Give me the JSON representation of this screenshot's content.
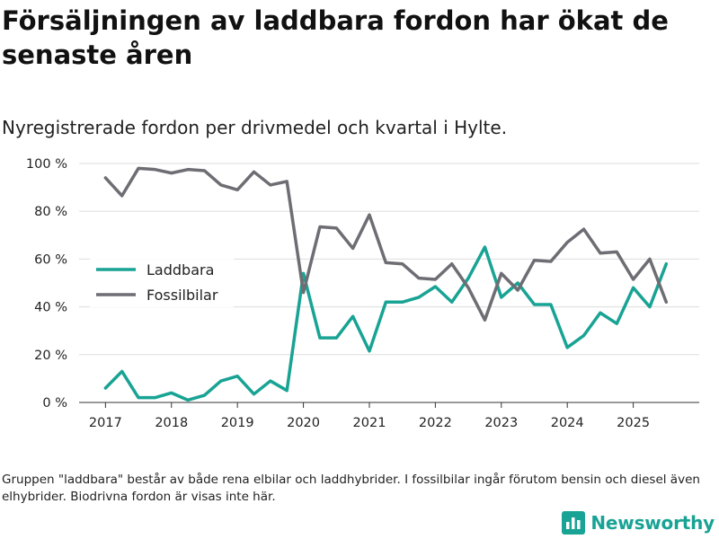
{
  "title": "Försäljningen av laddbara fordon har ökat de senaste åren",
  "subtitle": "Nyregistrerade fordon per drivmedel och kvartal i Hylte.",
  "footnote": "Gruppen \"laddbara\" består av både rena elbilar och laddhybrider. I fossilbilar ingår förutom bensin och diesel även elhybrider. Biodrivna fordon är visas inte här.",
  "brand": {
    "name": "Newsworthy",
    "icon": "newsworthy-logo-icon",
    "color": "#18A394"
  },
  "chart_data": {
    "type": "line",
    "title": "",
    "xlabel": "",
    "ylabel": "",
    "xlim": [
      2016.6,
      2026.0
    ],
    "ylim": [
      0,
      100
    ],
    "grid": true,
    "legend_position": "center-left",
    "x_ticks": [
      2017,
      2018,
      2019,
      2020,
      2021,
      2022,
      2023,
      2024,
      2025
    ],
    "x_tick_labels": [
      "2017",
      "2018",
      "2019",
      "2020",
      "2021",
      "2022",
      "2023",
      "2024",
      "2025"
    ],
    "y_ticks": [
      0,
      20,
      40,
      60,
      80,
      100
    ],
    "y_tick_labels": [
      "0 %",
      "20 %",
      "40 %",
      "60 %",
      "80 %",
      "100 %"
    ],
    "x": [
      2017.0,
      2017.25,
      2017.5,
      2017.75,
      2018.0,
      2018.25,
      2018.5,
      2018.75,
      2019.0,
      2019.25,
      2019.5,
      2019.75,
      2020.0,
      2020.25,
      2020.5,
      2020.75,
      2021.0,
      2021.25,
      2021.5,
      2021.75,
      2022.0,
      2022.25,
      2022.5,
      2022.75,
      2023.0,
      2023.25,
      2023.5,
      2023.75,
      2024.0,
      2024.25,
      2024.5,
      2024.75,
      2025.0,
      2025.25,
      2025.5
    ],
    "series": [
      {
        "name": "Laddbara",
        "color": "#18A394",
        "values": [
          6,
          13,
          2,
          2,
          4,
          1,
          3,
          9,
          11,
          3.5,
          9,
          5,
          54,
          27,
          27,
          36,
          21.5,
          42,
          42,
          44,
          48.5,
          42,
          52,
          65,
          44,
          50,
          41,
          41,
          23,
          28,
          37.5,
          33,
          48,
          40,
          58
        ]
      },
      {
        "name": "Fossilbilar",
        "color": "#6E6D73",
        "values": [
          94,
          86.5,
          98,
          97.5,
          96,
          97.5,
          97,
          91,
          89,
          96.5,
          91,
          92.5,
          46,
          73.5,
          73,
          64.5,
          78.5,
          58.5,
          58,
          52,
          51.5,
          58,
          48,
          34.5,
          54,
          47,
          59.5,
          59,
          67,
          72.5,
          62.5,
          63,
          51.5,
          60,
          42
        ]
      }
    ]
  }
}
